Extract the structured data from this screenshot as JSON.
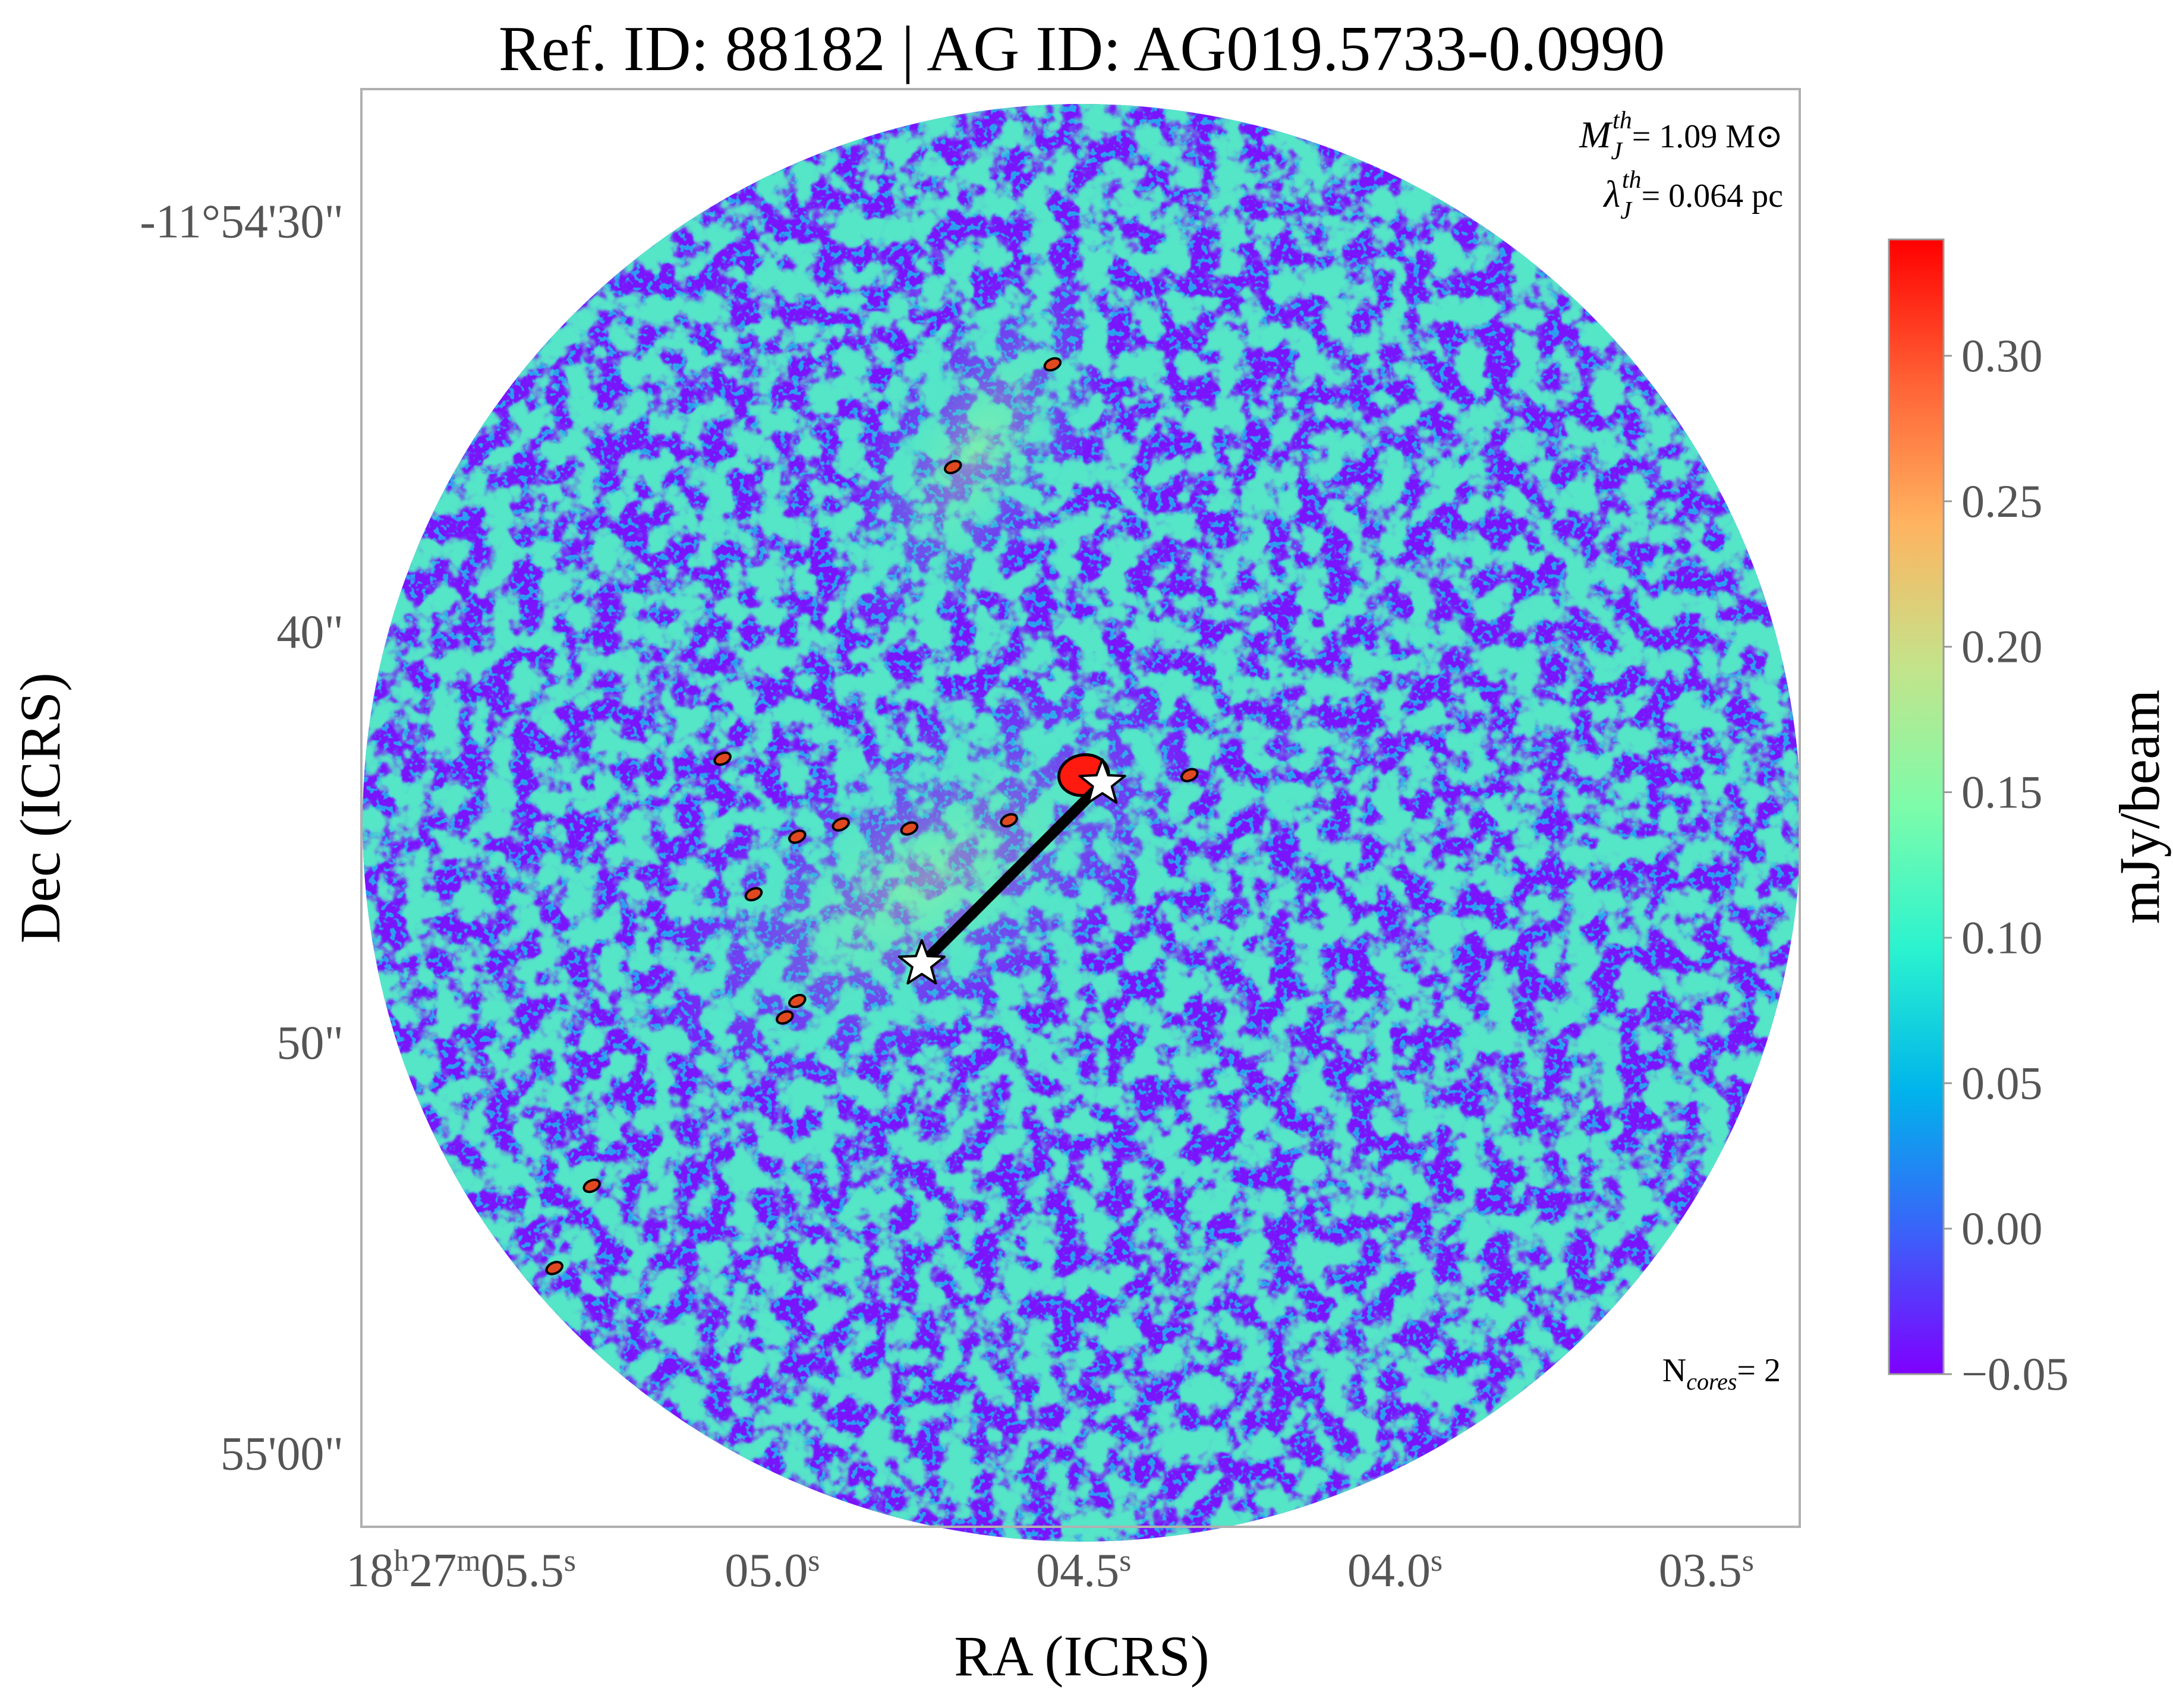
{
  "chart_data": {
    "type": "heatmap",
    "title": "Ref. ID: 88182 | AG ID: AG019.5733-0.0990",
    "xlabel": "RA (ICRS)",
    "ylabel": "Dec (ICRS)",
    "colorbar_label": "mJy/beam",
    "colormap": "rainbow",
    "colormap_stops": [
      "#7f00ff",
      "#3a62f9",
      "#00b4eb",
      "#2bf3cf",
      "#7dfcaa",
      "#c4e38a",
      "#ffb360",
      "#ff6135",
      "#ff0000"
    ],
    "vmin": -0.05,
    "vmax": 0.34,
    "colorbar_ticks": [
      {
        "value": 0.3,
        "label": "0.30"
      },
      {
        "value": 0.25,
        "label": "0.25"
      },
      {
        "value": 0.2,
        "label": "0.20"
      },
      {
        "value": 0.15,
        "label": "0.15"
      },
      {
        "value": 0.1,
        "label": "0.10"
      },
      {
        "value": 0.05,
        "label": "0.05"
      },
      {
        "value": 0.0,
        "label": "0.00"
      },
      {
        "value": -0.05,
        "label": "−0.05"
      }
    ],
    "x_ticks": [
      {
        "value": 5.5,
        "label": "18h27m05.5s"
      },
      {
        "value": 5.0,
        "label": "05.0s"
      },
      {
        "value": 4.5,
        "label": "04.5s"
      },
      {
        "value": 4.0,
        "label": "04.0s"
      },
      {
        "value": 3.5,
        "label": "03.5s"
      }
    ],
    "x_tick_parts": [
      [
        "18",
        "h",
        "27",
        "m",
        "05.5",
        "s"
      ],
      [
        "05.0",
        "s"
      ],
      [
        "04.5",
        "s"
      ],
      [
        "04.0",
        "s"
      ],
      [
        "03.5",
        "s"
      ]
    ],
    "y_ticks": [
      {
        "value": 30,
        "label": "-11°54'30\""
      },
      {
        "value": 40,
        "label": "40\""
      },
      {
        "value": 50,
        "label": "50\""
      },
      {
        "value": 60,
        "label": "55'00\""
      }
    ],
    "xlim_ra_seconds": [
      5.66,
      3.35
    ],
    "ylim_dec_arcsec_below_11d54m": [
      26.8,
      61.8
    ],
    "annotations": {
      "mj_text": "= 1.09 M⊙",
      "lambda_text": "= 0.064 pc",
      "ncores_text": "= 2"
    },
    "cores": [
      {
        "ra_s": 4.47,
        "dec_arcsec": 43.7,
        "marker": "star"
      },
      {
        "ra_s": 4.76,
        "dec_arcsec": 48.1,
        "marker": "star"
      }
    ],
    "mst_edges": [
      [
        0,
        1
      ]
    ],
    "contoured_sources": [
      {
        "ra_s": 4.5,
        "dec_arcsec": 43.5
      },
      {
        "ra_s": 4.78,
        "dec_arcsec": 44.8
      },
      {
        "ra_s": 4.89,
        "dec_arcsec": 44.7
      },
      {
        "ra_s": 4.62,
        "dec_arcsec": 44.6
      },
      {
        "ra_s": 4.96,
        "dec_arcsec": 45.0
      },
      {
        "ra_s": 5.03,
        "dec_arcsec": 46.4
      },
      {
        "ra_s": 4.96,
        "dec_arcsec": 49.0
      },
      {
        "ra_s": 4.98,
        "dec_arcsec": 49.4
      },
      {
        "ra_s": 4.71,
        "dec_arcsec": 36.0
      },
      {
        "ra_s": 5.35,
        "dec_arcsec": 55.5
      },
      {
        "ra_s": 5.29,
        "dec_arcsec": 53.5
      },
      {
        "ra_s": 4.33,
        "dec_arcsec": 43.5
      },
      {
        "ra_s": 5.08,
        "dec_arcsec": 43.1
      },
      {
        "ra_s": 4.55,
        "dec_arcsec": 33.5
      }
    ]
  }
}
